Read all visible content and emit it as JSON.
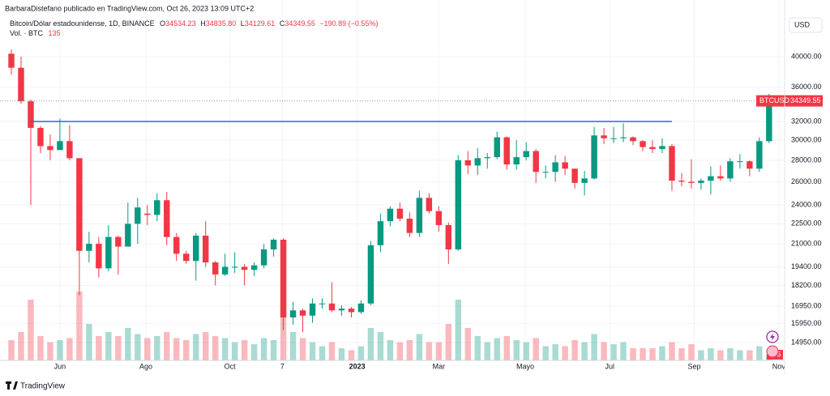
{
  "header": {
    "author_line": "BarbaraDistefano publicado en TradingView.com, Oct 26, 2023 13:09 UTC+2",
    "symbol_line": "Bitcoin/Dólar estadounidense, 1D, BINANCE",
    "ohlc": [
      {
        "label": "O",
        "value": "34534.23"
      },
      {
        "label": "H",
        "value": "34835.80"
      },
      {
        "label": "L",
        "value": "34129.61"
      },
      {
        "label": "C",
        "value": "34349.55"
      }
    ],
    "change": "−190.89 (−0.55%)",
    "volume_label": "Vol. · BTC",
    "currency": "USD",
    "branding": "TradingView"
  },
  "chart_data": {
    "type": "candlestick",
    "symbol": "BTCUSD",
    "up_color": "#089981",
    "down_color": "#f23645",
    "log_scale": true,
    "grid": true,
    "open": [
      40400,
      38500,
      34300,
      31300,
      29400,
      29000,
      29900,
      28200,
      20500,
      21000,
      19300,
      21500,
      20800,
      22500,
      23300,
      23200,
      24400,
      21500,
      20300,
      19800,
      21600,
      19700,
      18900,
      19400,
      19400,
      19200,
      19500,
      20600,
      21300,
      16300,
      16700,
      16400,
      17100,
      17100,
      16700,
      16800,
      16600,
      17100,
      20900,
      22700,
      23700,
      22900,
      21800,
      24600,
      23500,
      22400,
      20600,
      28000,
      27500,
      28200,
      28300,
      30300,
      27600,
      28300,
      28900,
      26900,
      26900,
      27800,
      27200,
      25900,
      26300,
      30500,
      30200,
      30200,
      30300,
      29900,
      29300,
      29100,
      29400,
      26100,
      26000,
      25900,
      26100,
      26500,
      26300,
      27900,
      27900,
      27200,
      29900
    ],
    "high": [
      41000,
      40000,
      34500,
      31500,
      30600,
      32300,
      31600,
      28200,
      21900,
      21500,
      22400,
      21600,
      24200,
      24600,
      24000,
      25000,
      25100,
      21800,
      20500,
      21800,
      22700,
      19800,
      20300,
      20400,
      19600,
      19700,
      21000,
      21400,
      21400,
      17200,
      16800,
      17400,
      17400,
      18400,
      17000,
      16900,
      17300,
      21200,
      23300,
      23900,
      24200,
      23400,
      25200,
      25000,
      23900,
      22600,
      28500,
      28900,
      29200,
      28700,
      30900,
      30400,
      30000,
      29800,
      29100,
      27500,
      28500,
      28400,
      27200,
      27000,
      31400,
      31300,
      31400,
      31800,
      30400,
      30000,
      30000,
      30200,
      29600,
      26800,
      28100,
      26300,
      27400,
      27500,
      28200,
      28600,
      28000,
      30300,
      35200
    ],
    "low": [
      37600,
      34000,
      24000,
      28700,
      28000,
      29200,
      28000,
      17600,
      19700,
      18700,
      19100,
      18900,
      20800,
      21000,
      22400,
      22700,
      20900,
      19800,
      19600,
      18500,
      19400,
      18200,
      18800,
      19000,
      18200,
      18800,
      19300,
      20100,
      15600,
      15900,
      15500,
      16000,
      16800,
      16600,
      16400,
      16300,
      16500,
      17000,
      20400,
      22300,
      22700,
      21500,
      21500,
      23300,
      21900,
      19600,
      20500,
      26700,
      26600,
      27200,
      28100,
      27100,
      27100,
      28000,
      25900,
      26300,
      26000,
      26600,
      25400,
      24800,
      26200,
      29600,
      29700,
      29800,
      29500,
      28900,
      28700,
      28700,
      25200,
      25600,
      25400,
      25300,
      24900,
      26100,
      26000,
      27200,
      26500,
      26900,
      29700
    ],
    "close": [
      38500,
      34300,
      31300,
      29400,
      29000,
      29900,
      28200,
      20500,
      21000,
      19300,
      21500,
      20800,
      22500,
      23800,
      23200,
      24400,
      21500,
      20300,
      19800,
      21600,
      19700,
      18900,
      19400,
      19400,
      19200,
      19500,
      20600,
      21300,
      16300,
      16700,
      16400,
      17100,
      17100,
      16700,
      16800,
      16600,
      17100,
      20900,
      22700,
      23700,
      22900,
      21800,
      24600,
      23500,
      22400,
      20600,
      28000,
      27500,
      28200,
      28300,
      30300,
      27600,
      28300,
      28900,
      26900,
      26900,
      27800,
      27200,
      25900,
      26300,
      30500,
      30200,
      30200,
      30300,
      29900,
      29300,
      29100,
      29400,
      26100,
      26000,
      25900,
      26100,
      26500,
      26300,
      27900,
      27900,
      27200,
      29900,
      34349.55
    ],
    "volume": [
      500,
      700,
      1500,
      600,
      450,
      500,
      550,
      1700,
      900,
      600,
      700,
      600,
      800,
      650,
      550,
      600,
      700,
      550,
      500,
      650,
      700,
      600,
      550,
      450,
      500,
      400,
      550,
      500,
      1100,
      700,
      550,
      450,
      350,
      450,
      300,
      250,
      350,
      800,
      700,
      500,
      450,
      500,
      650,
      450,
      450,
      900,
      1500,
      800,
      600,
      450,
      550,
      600,
      500,
      450,
      550,
      350,
      400,
      350,
      500,
      450,
      650,
      450,
      400,
      450,
      300,
      300,
      300,
      350,
      450,
      300,
      400,
      250,
      300,
      250,
      300,
      250,
      250,
      350,
      135
    ],
    "ylim": [
      14060,
      42880
    ],
    "yticks": [
      {
        "value": 14950,
        "label": "14950.00"
      },
      {
        "value": 15950,
        "label": "15950.00"
      },
      {
        "value": 16950,
        "label": "16950.00"
      },
      {
        "value": 18200,
        "label": "18200.00"
      },
      {
        "value": 19400,
        "label": "19400.00"
      },
      {
        "value": 21000,
        "label": "21000.00"
      },
      {
        "value": 22500,
        "label": "22500.00"
      },
      {
        "value": 24000,
        "label": "24000.00"
      },
      {
        "value": 26000,
        "label": "26000.00"
      },
      {
        "value": 28000,
        "label": "28000.00"
      },
      {
        "value": 30000,
        "label": "30000.00"
      },
      {
        "value": 32000,
        "label": "32000.00"
      },
      {
        "value": 36000,
        "label": "36000.00"
      },
      {
        "value": 40000,
        "label": "40000.00"
      }
    ],
    "volume_ylim": [
      0,
      2000
    ],
    "xlim": [
      -0.5,
      79.6
    ],
    "xticks": [
      {
        "value": 5.0,
        "label": "Jun"
      },
      {
        "value": 13.85,
        "label": "Ago"
      },
      {
        "value": 22.5,
        "label": "Oct"
      },
      {
        "value": 27.9,
        "label": "7"
      },
      {
        "value": 35.6,
        "label": "2023"
      },
      {
        "value": 44.0,
        "label": "Mar"
      },
      {
        "value": 52.9,
        "label": "Mayo"
      },
      {
        "value": 61.6,
        "label": "Jul"
      },
      {
        "value": 70.3,
        "label": "Sep"
      },
      {
        "value": 79.0,
        "label": "Nov"
      }
    ],
    "hline": {
      "value": 32000,
      "from": 2,
      "to": 68,
      "color": "#2962ff"
    }
  }
}
